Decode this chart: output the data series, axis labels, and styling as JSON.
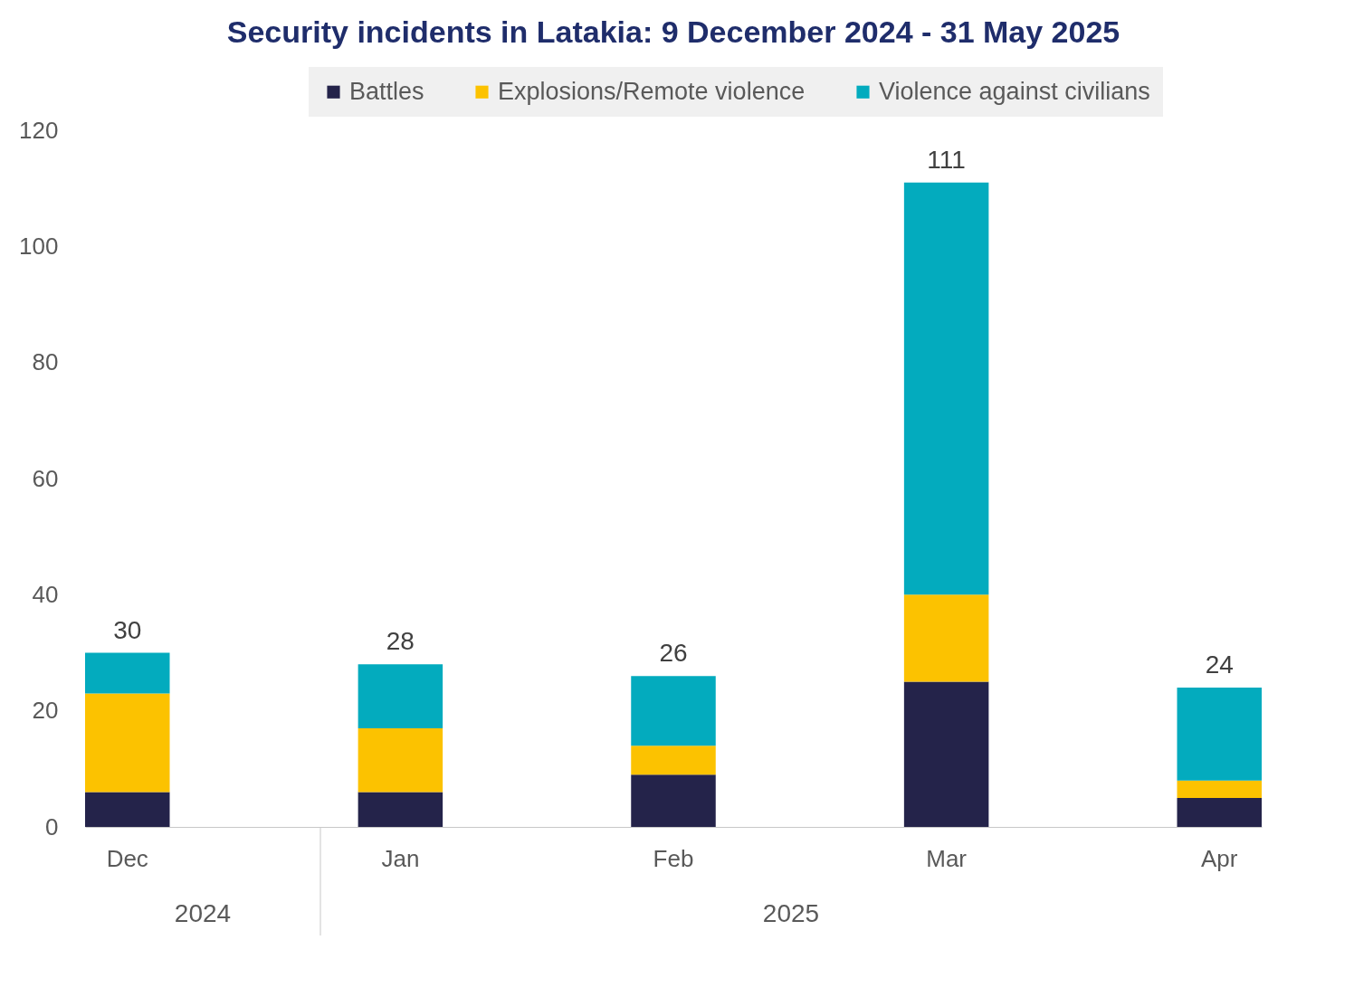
{
  "chart_data": {
    "type": "bar",
    "title": "Security incidents in Latakia: 9 December 2024 - 31 May 2025",
    "categories": [
      "Dec",
      "Jan",
      "Feb",
      "Mar",
      "Apr"
    ],
    "series": [
      {
        "name": "Battles",
        "color": "#24234a",
        "values": [
          6,
          6,
          9,
          25,
          5
        ]
      },
      {
        "name": "Explosions/Remote violence",
        "color": "#fcc200",
        "values": [
          17,
          11,
          5,
          15,
          3
        ]
      },
      {
        "name": "Violence against civilians",
        "color": "#03abbe",
        "values": [
          7,
          11,
          12,
          71,
          16
        ]
      }
    ],
    "stacked": true,
    "totals": [
      "30",
      "28",
      "26",
      "111",
      "24"
    ],
    "ylim": [
      0,
      120
    ],
    "yticks": [
      0,
      20,
      40,
      60,
      80,
      100,
      120
    ],
    "grid": false,
    "legend": "top",
    "annotations": [
      "2024",
      "2025"
    ]
  }
}
